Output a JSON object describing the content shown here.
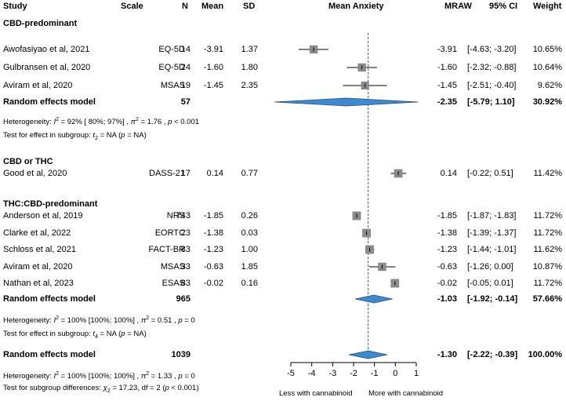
{
  "header": {
    "study": "Study",
    "scale": "Scale",
    "n": "N",
    "mean": "Mean",
    "sd": "SD",
    "plot": "Mean Anxiety",
    "mraw": "MRAW",
    "ci": "95% CI",
    "weight": "Weight"
  },
  "chart_data": {
    "type": "forest",
    "reference_line": -1.3,
    "xlim": [
      -5,
      1
    ],
    "x_ticks": [
      "-5",
      "-4",
      "-3",
      "-2",
      "-1",
      "0",
      "1"
    ],
    "x_annotation_left": "Less with cannabinoid",
    "x_annotation_right": "More with cannabinoid",
    "groups": [
      {
        "title": "CBD-predominant",
        "studies": [
          {
            "study": "Awofasiyao et al, 2021",
            "scale": "EQ-5D",
            "n": "14",
            "mean": "-3.91",
            "sd": "1.37",
            "mraw": "-3.91",
            "ci": "[-4.63; -3.20]",
            "weight": "10.65%",
            "est": -3.91,
            "lo": -4.63,
            "hi": -3.2,
            "w": 10.65
          },
          {
            "study": "Gulbransen et al, 2020",
            "scale": "EQ-5D",
            "n": "24",
            "mean": "-1.60",
            "sd": "1.80",
            "mraw": "-1.60",
            "ci": "[-2.32; -0.88]",
            "weight": "10.64%",
            "est": -1.6,
            "lo": -2.32,
            "hi": -0.88,
            "w": 10.64
          },
          {
            "study": "Aviram et al, 2020",
            "scale": "MSAS",
            "n": "19",
            "mean": "-1.45",
            "sd": "2.35",
            "mraw": "-1.45",
            "ci": "[-2.51; -0.40]",
            "weight": "9.62%",
            "est": -1.45,
            "lo": -2.51,
            "hi": -0.4,
            "w": 9.62
          }
        ],
        "summary": {
          "label": "Random effects model",
          "n": "57",
          "mraw": "-2.35",
          "ci": "[-5.79; 1.10]",
          "weight": "30.92%",
          "est": -2.35,
          "lo": -5.79,
          "hi": 1.1
        },
        "heterogeneity": [
          "Heterogeneity: ",
          "I",
          "2",
          " = 92% [ 80%; 97%]  , ",
          "π",
          "2",
          " = 1.76 , ",
          "p",
          " < 0.001"
        ],
        "subgroup_test": [
          "Test for effect in subgroup:  ",
          "t",
          "2",
          " = NA  (",
          "p",
          " = NA)"
        ]
      },
      {
        "title": "CBD or THC",
        "studies": [
          {
            "study": "Good et al, 2020",
            "scale": "DASS-21",
            "n": "17",
            "mean": "0.14",
            "sd": "0.77",
            "mraw": "0.14",
            "ci": "[-0.22; 0.51]",
            "weight": "11.42%",
            "est": 0.14,
            "lo": -0.22,
            "hi": 0.51,
            "w": 11.42
          }
        ]
      },
      {
        "title": "THC:CBD-predominant",
        "studies": [
          {
            "study": "Anderson et al, 2019",
            "scale": "NRS",
            "n": "743",
            "mean": "-1.85",
            "sd": "0.26",
            "mraw": "-1.85",
            "ci": "[-1.87; -1.83]",
            "weight": "11.72%",
            "est": -1.85,
            "lo": -1.87,
            "hi": -1.83,
            "w": 11.72
          },
          {
            "study": "Clarke et al, 2022",
            "scale": "EORTC",
            "n": "23",
            "mean": "-1.38",
            "sd": "0.03",
            "mraw": "-1.38",
            "ci": "[-1.39; -1.37]",
            "weight": "11.72%",
            "est": -1.38,
            "lo": -1.39,
            "hi": -1.37,
            "w": 11.72
          },
          {
            "study": "Schloss et al, 2021",
            "scale": "FACT-BR",
            "n": "83",
            "mean": "-1.23",
            "sd": "1.00",
            "mraw": "-1.23",
            "ci": "[-1.44; -1.01]",
            "weight": "11.62%",
            "est": -1.23,
            "lo": -1.44,
            "hi": -1.01,
            "w": 11.62
          },
          {
            "study": "Aviram et al, 2020",
            "scale": "MSAS",
            "n": "33",
            "mean": "-0.63",
            "sd": "1.85",
            "mraw": "-0.63",
            "ci": "[-1.26; 0.00]",
            "weight": "10.87%",
            "est": -0.63,
            "lo": -1.26,
            "hi": 0.0,
            "w": 10.87
          },
          {
            "study": "Nathan et al, 2023",
            "scale": "ESAS",
            "n": "83",
            "mean": "-0.02",
            "sd": "0.16",
            "mraw": "-0.02",
            "ci": "[-0.05; 0.01]",
            "weight": "11.72%",
            "est": -0.02,
            "lo": -0.05,
            "hi": 0.01,
            "w": 11.72
          }
        ],
        "summary": {
          "label": "Random effects model",
          "n": "965",
          "mraw": "-1.03",
          "ci": "[-1.92; -0.14]",
          "weight": "57.66%",
          "est": -1.03,
          "lo": -1.92,
          "hi": -0.14
        },
        "heterogeneity": [
          "Heterogeneity: ",
          "I",
          "2",
          " = 100% [100%; 100%]  , ",
          "π",
          "2",
          " = 0.51 , ",
          "p",
          " = 0"
        ],
        "subgroup_test": [
          "Test for effect in subgroup:  ",
          "t",
          "4",
          " = NA  (",
          "p",
          " = NA)"
        ]
      }
    ],
    "overall": {
      "label": "Random effects model",
      "n": "1039",
      "mraw": "-1.30",
      "ci": "[-2.22; -0.39]",
      "weight": "100.00%",
      "est": -1.3,
      "lo": -2.22,
      "hi": -0.39,
      "heterogeneity": [
        "Heterogeneity: ",
        "I",
        "2",
        " = 100% [100%; 100%]  , ",
        "π",
        "2",
        " = 1.33 , ",
        "p",
        " = 0"
      ],
      "subgroup_differences": [
        "Test for subgroup differences:  ",
        "χ",
        "2",
        " = 17.23, df = 2  (",
        "p",
        " < 0.001)"
      ]
    },
    "colors": {
      "box": "#8c8c8c",
      "diamond": "#3e8ad0",
      "diamond_stroke": "#1f4e79",
      "ref_line": "#555555"
    }
  }
}
